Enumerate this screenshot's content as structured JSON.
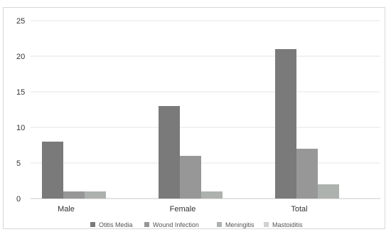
{
  "chart_data": {
    "type": "bar",
    "title": "",
    "xlabel": "",
    "ylabel": "",
    "categories": [
      "Male",
      "Female",
      "Total"
    ],
    "series": [
      {
        "name": "Otitis Media",
        "values": [
          8,
          13,
          21
        ],
        "color": "#7a7a7a"
      },
      {
        "name": "Wound Infection",
        "values": [
          1,
          6,
          7
        ],
        "color": "#979797"
      },
      {
        "name": "Meningitis",
        "values": [
          1,
          1,
          2
        ],
        "color": "#adb2ae"
      },
      {
        "name": "Mastoiditis",
        "values": [
          0,
          0,
          0
        ],
        "color": "#cfd2cf"
      }
    ],
    "ylim": [
      0,
      25
    ],
    "yticks": [
      0,
      5,
      10,
      15,
      20,
      25
    ],
    "grid": true,
    "legend_position": "bottom"
  }
}
